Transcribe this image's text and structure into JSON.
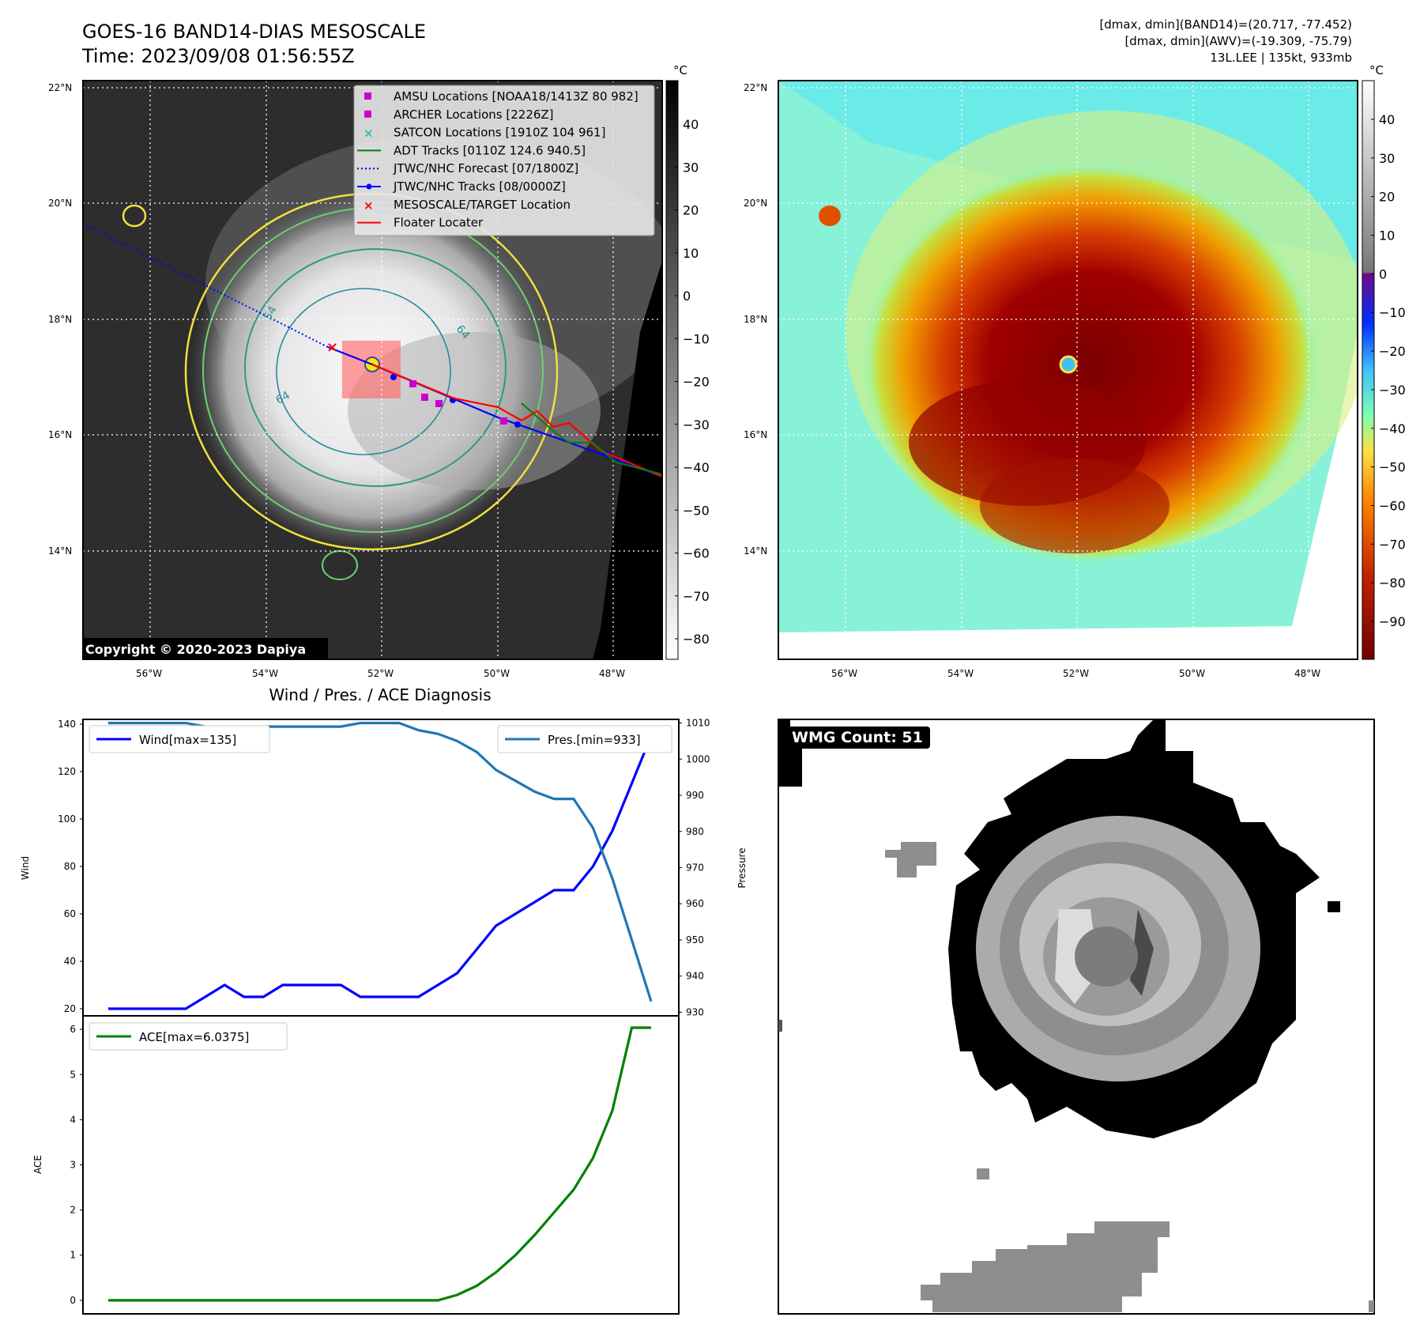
{
  "header": {
    "title_line1": "GOES-16 BAND14-DIAS MESOSCALE",
    "title_line2": "Time: 2023/09/08 01:56:55Z",
    "stats_line1": "[dmax, dmin](BAND14)=(20.717, -77.452)",
    "stats_line2": "[dmax, dmin](AWV)=(-19.309, -75.79)",
    "stats_line3": "13L.LEE | 135kt, 933mb"
  },
  "map": {
    "lat_ticks": [
      "22°N",
      "20°N",
      "18°N",
      "16°N",
      "14°N"
    ],
    "lon_ticks": [
      "56°W",
      "54°W",
      "52°W",
      "50°W",
      "48°W"
    ],
    "copyright": "Copyright © 2020-2023 Dapiya",
    "contour_labels": [
      "54",
      "64",
      "64"
    ]
  },
  "legend": [
    {
      "label": "AMSU Locations [NOAA18/1413Z 80 982]",
      "marker": "square",
      "color": "#cc00cc"
    },
    {
      "label": "ARCHER Locations [2226Z]",
      "marker": "square",
      "color": "#cc00cc"
    },
    {
      "label": "SATCON Locations [1910Z 104 961]",
      "marker": "x",
      "color": "#22bbbb"
    },
    {
      "label": "ADT Tracks [0110Z 124.6 940.5]",
      "marker": "line",
      "color": "#008000"
    },
    {
      "label": "JTWC/NHC Forecast [07/1800Z]",
      "marker": "dotted",
      "color": "#0000ff"
    },
    {
      "label": "JTWC/NHC Tracks [08/0000Z]",
      "marker": "line-dot",
      "color": "#0000ff"
    },
    {
      "label": "MESOSCALE/TARGET Location",
      "marker": "x",
      "color": "#ff0000"
    },
    {
      "label": "Floater Locater",
      "marker": "line",
      "color": "#ff0000"
    }
  ],
  "colorbar_left": {
    "unit": "°C",
    "ticks": [
      "40",
      "30",
      "20",
      "10",
      "0",
      "−10",
      "−20",
      "−30",
      "−40",
      "−50",
      "−60",
      "−70",
      "−80"
    ]
  },
  "colorbar_right": {
    "unit": "°C",
    "ticks": [
      "40",
      "30",
      "20",
      "10",
      "0",
      "−10",
      "−20",
      "−30",
      "−40",
      "−50",
      "−60",
      "−70",
      "−80",
      "−90"
    ]
  },
  "wmg": {
    "count_label": "WMG Count: 51"
  },
  "chart_data": [
    {
      "type": "line",
      "title": "Wind / Pres. / ACE Diagnosis",
      "ylabel": "Wind",
      "y2label": "Pressure",
      "ylim": [
        17,
        142
      ],
      "y2lim": [
        929,
        1011
      ],
      "yticks": [
        20,
        40,
        60,
        80,
        100,
        120,
        140
      ],
      "y2ticks": [
        930,
        940,
        950,
        960,
        970,
        980,
        990,
        1000,
        1010
      ],
      "series": [
        {
          "name": "Wind[max=135]",
          "color": "#0000ff",
          "axis": "left",
          "values": [
            20,
            20,
            20,
            20,
            20,
            25,
            30,
            25,
            25,
            30,
            30,
            30,
            30,
            25,
            25,
            25,
            25,
            30,
            35,
            45,
            55,
            60,
            65,
            70,
            70,
            80,
            95,
            115,
            135
          ]
        },
        {
          "name": "Pres.[min=933]",
          "color": "#1f77b4",
          "axis": "right",
          "values": [
            1010,
            1010,
            1010,
            1010,
            1010,
            1009,
            1009,
            1009,
            1009,
            1009,
            1009,
            1009,
            1009,
            1010,
            1010,
            1010,
            1008,
            1007,
            1005,
            1002,
            997,
            994,
            991,
            989,
            989,
            981,
            967,
            950,
            933
          ]
        }
      ]
    },
    {
      "type": "line",
      "ylabel": "ACE",
      "ylim": [
        -0.3,
        6.3
      ],
      "yticks": [
        0,
        1,
        2,
        3,
        4,
        5,
        6
      ],
      "series": [
        {
          "name": "ACE[max=6.0375]",
          "color": "#008000",
          "values": [
            0,
            0,
            0,
            0,
            0,
            0,
            0,
            0,
            0,
            0,
            0,
            0,
            0,
            0,
            0,
            0,
            0,
            0,
            0.12,
            0.32,
            0.62,
            1.0,
            1.45,
            1.95,
            2.45,
            3.15,
            4.2,
            6.0375,
            6.0375
          ]
        }
      ]
    }
  ]
}
